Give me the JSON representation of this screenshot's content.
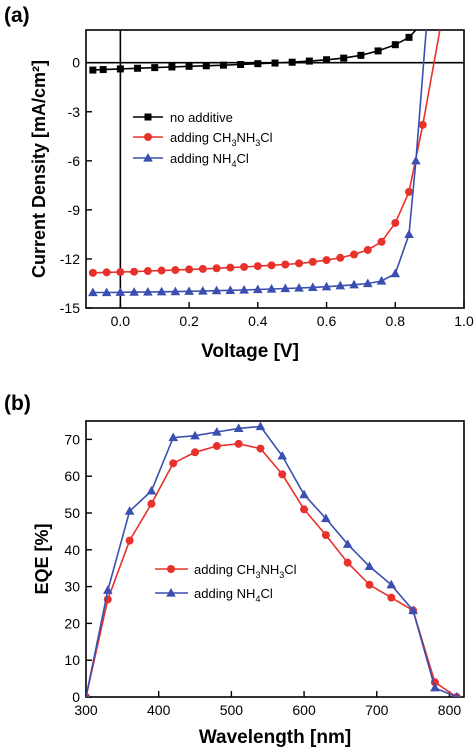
{
  "panels": [
    {
      "label": "(a)"
    },
    {
      "label": "(b)"
    }
  ],
  "chart_data": [
    {
      "type": "line",
      "xlabel": "Voltage [V]",
      "ylabel": "Current Density [mA/cm²]",
      "xlim": [
        -0.1,
        1.0
      ],
      "ylim": [
        -15,
        2
      ],
      "xticks": [
        0.0,
        0.2,
        0.4,
        0.6,
        0.8,
        1.0
      ],
      "xtick_labels": [
        "0.0",
        "0.2",
        "0.4",
        "0.6",
        "0.8",
        "1.0"
      ],
      "yticks": [
        0,
        -3,
        -6,
        -9,
        -12,
        -15
      ],
      "ytick_labels": [
        "0",
        "-3",
        "-6",
        "-9",
        "-12",
        "-15"
      ],
      "reference_lines": {
        "x": 0,
        "y": 0
      },
      "legend_position": "center-left",
      "series": [
        {
          "name_parts": [
            [
              "no additive",
              "n"
            ]
          ],
          "name": "no additive",
          "marker": "square",
          "color": "#000000",
          "x": [
            -0.08,
            -0.05,
            0.0,
            0.05,
            0.1,
            0.15,
            0.2,
            0.25,
            0.3,
            0.35,
            0.4,
            0.45,
            0.5,
            0.55,
            0.6,
            0.65,
            0.7,
            0.75,
            0.8,
            0.84,
            0.86
          ],
          "y": [
            -0.45,
            -0.42,
            -0.38,
            -0.34,
            -0.3,
            -0.26,
            -0.22,
            -0.19,
            -0.15,
            -0.11,
            -0.06,
            -0.02,
            0.03,
            0.1,
            0.18,
            0.28,
            0.45,
            0.72,
            1.1,
            1.55,
            2.0
          ]
        },
        {
          "name_parts": [
            [
              "adding CH",
              "n"
            ],
            [
              "3",
              "sub"
            ],
            [
              "NH",
              "n"
            ],
            [
              "3",
              "sub"
            ],
            [
              "Cl",
              "n"
            ]
          ],
          "name": "adding CH3NH3Cl",
          "marker": "circle",
          "color": "#e8312a",
          "x": [
            -0.08,
            -0.04,
            0.0,
            0.04,
            0.08,
            0.12,
            0.16,
            0.2,
            0.24,
            0.28,
            0.32,
            0.36,
            0.4,
            0.44,
            0.48,
            0.52,
            0.56,
            0.6,
            0.64,
            0.68,
            0.72,
            0.76,
            0.8,
            0.84,
            0.88,
            0.93
          ],
          "y": [
            -12.85,
            -12.82,
            -12.8,
            -12.78,
            -12.74,
            -12.71,
            -12.68,
            -12.64,
            -12.61,
            -12.57,
            -12.53,
            -12.49,
            -12.44,
            -12.39,
            -12.34,
            -12.27,
            -12.18,
            -12.07,
            -11.93,
            -11.73,
            -11.45,
            -10.95,
            -9.8,
            -7.9,
            -3.8,
            2.0
          ]
        },
        {
          "name_parts": [
            [
              "adding NH",
              "n"
            ],
            [
              "4",
              "sub"
            ],
            [
              "Cl",
              "n"
            ]
          ],
          "name": "adding NH4Cl",
          "marker": "triangle",
          "color": "#3a4fb0",
          "x": [
            -0.08,
            -0.04,
            0.0,
            0.04,
            0.08,
            0.12,
            0.16,
            0.2,
            0.24,
            0.28,
            0.32,
            0.36,
            0.4,
            0.44,
            0.48,
            0.52,
            0.56,
            0.6,
            0.64,
            0.68,
            0.72,
            0.76,
            0.8,
            0.84,
            0.86,
            0.89
          ],
          "y": [
            -14.05,
            -14.05,
            -14.04,
            -14.03,
            -14.02,
            -14.01,
            -14.0,
            -13.98,
            -13.96,
            -13.94,
            -13.92,
            -13.9,
            -13.87,
            -13.84,
            -13.81,
            -13.78,
            -13.74,
            -13.7,
            -13.64,
            -13.58,
            -13.5,
            -13.35,
            -12.9,
            -10.5,
            -6.0,
            2.0
          ]
        }
      ]
    },
    {
      "type": "line",
      "xlabel": "Wavelength [nm]",
      "ylabel": "EQE [%]",
      "xlim": [
        300,
        820
      ],
      "ylim": [
        0,
        75
      ],
      "xticks": [
        300,
        400,
        500,
        600,
        700,
        800
      ],
      "xtick_labels": [
        "300",
        "400",
        "500",
        "600",
        "700",
        "800"
      ],
      "yticks": [
        0,
        10,
        20,
        30,
        40,
        50,
        60,
        70
      ],
      "ytick_labels": [
        "0",
        "10",
        "20",
        "30",
        "40",
        "50",
        "60",
        "70"
      ],
      "legend_position": "center",
      "series": [
        {
          "name_parts": [
            [
              "adding CH",
              "n"
            ],
            [
              "3",
              "sub"
            ],
            [
              "NH",
              "n"
            ],
            [
              "3",
              "sub"
            ],
            [
              "Cl",
              "n"
            ]
          ],
          "name": "adding CH3NH3Cl",
          "marker": "circle",
          "color": "#e8312a",
          "x": [
            300,
            330,
            360,
            390,
            420,
            450,
            480,
            510,
            540,
            570,
            600,
            630,
            660,
            690,
            720,
            750,
            780,
            810
          ],
          "y": [
            0,
            26.5,
            42.5,
            52.5,
            63.5,
            66.5,
            68.2,
            68.8,
            67.5,
            60.5,
            51.0,
            44.0,
            36.5,
            30.5,
            27.0,
            23.5,
            4.0,
            0
          ]
        },
        {
          "name_parts": [
            [
              "adding NH",
              "n"
            ],
            [
              "4",
              "sub"
            ],
            [
              "Cl",
              "n"
            ]
          ],
          "name": "adding NH4Cl",
          "marker": "triangle",
          "color": "#3a4fb0",
          "x": [
            300,
            330,
            360,
            390,
            420,
            450,
            480,
            510,
            540,
            570,
            600,
            630,
            660,
            690,
            720,
            750,
            780,
            810
          ],
          "y": [
            0,
            29.0,
            50.5,
            56.0,
            70.5,
            71.0,
            72.0,
            73.0,
            73.5,
            65.5,
            55.0,
            48.5,
            41.5,
            35.5,
            30.5,
            23.5,
            2.5,
            0
          ]
        }
      ]
    }
  ]
}
